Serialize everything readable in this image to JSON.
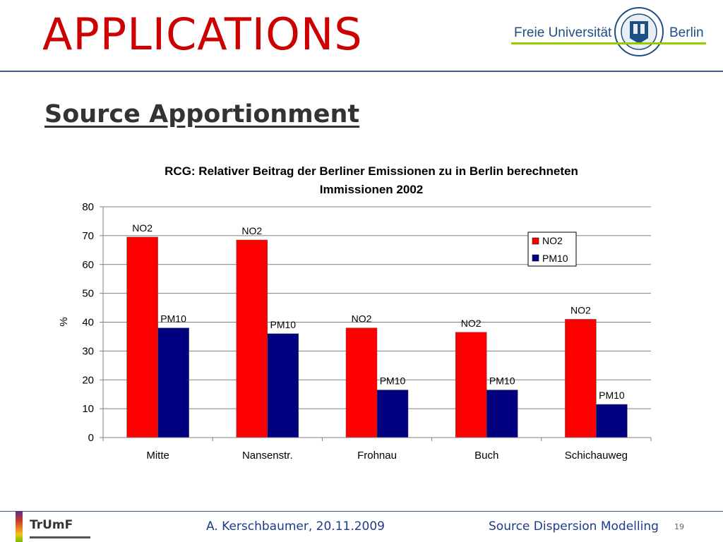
{
  "slide": {
    "title": "APPLICATIONS",
    "subtitle": "Source Apportionment"
  },
  "logo": {
    "left_text": "Freie Universität",
    "right_text": "Berlin",
    "accent_color": "#99cc00",
    "text_color": "#1f4f82",
    "icon": "university-seal-icon"
  },
  "footer": {
    "org": "TrUmF",
    "author_date": "A. Kerschbaumer, 20.11.2009",
    "topic": "Source Dispersion Modelling",
    "page": "19",
    "text_color": "#1f3a8a"
  },
  "chart_data": {
    "type": "bar",
    "title_lines": [
      "RCG: Relativer Beitrag der Berliner Emissionen zu in Berlin berechneten",
      "Immissionen 2002"
    ],
    "ylabel": "%",
    "xlabel": "",
    "ylim": [
      0,
      80
    ],
    "yticks": [
      "0",
      "10",
      "20",
      "30",
      "40",
      "50",
      "60",
      "70",
      "80"
    ],
    "grid": true,
    "legend_position": "top-right",
    "categories": [
      "Mitte",
      "Nansenstr.",
      "Frohnau",
      "Buch",
      "Schichauweg"
    ],
    "series": [
      {
        "name": "NO2",
        "color": "#ff0000",
        "values": [
          69.5,
          68.5,
          38,
          36.5,
          41
        ]
      },
      {
        "name": "PM10",
        "color": "#000080",
        "values": [
          38,
          36,
          16.5,
          16.5,
          11.5
        ]
      }
    ],
    "data_labels": [
      [
        "NO2",
        "NO2",
        "NO2",
        "NO2",
        "NO2"
      ],
      [
        "PM10",
        "PM10",
        "PM10",
        "PM10",
        "PM10"
      ]
    ]
  }
}
